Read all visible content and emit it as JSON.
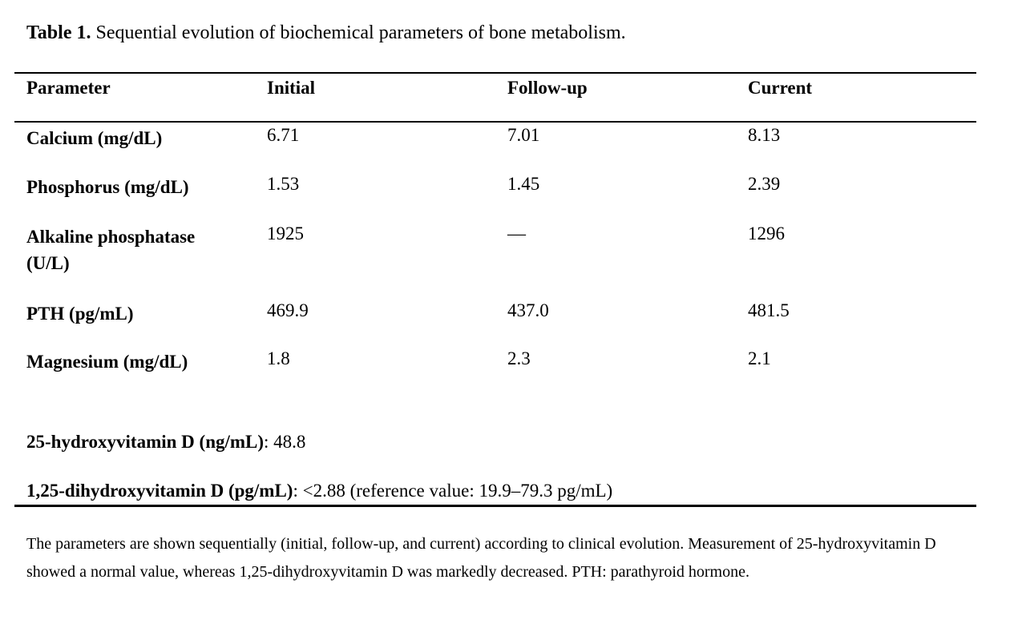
{
  "title": {
    "label": "Table 1.",
    "rest": " Sequential evolution of biochemical parameters of bone metabolism."
  },
  "table": {
    "columns": [
      "Parameter",
      "Initial",
      "Follow-up",
      "Current"
    ],
    "rows": [
      {
        "parameter": "Calcium (mg/dL)",
        "initial": "6.71",
        "followup": "7.01",
        "current": "8.13"
      },
      {
        "parameter": "Phosphorus (mg/dL)",
        "initial": "1.53",
        "followup": "1.45",
        "current": "2.39"
      },
      {
        "parameter": "Alkaline phosphatase (U/L)",
        "initial": "1925",
        "followup": "—",
        "current": "1296"
      },
      {
        "parameter": "PTH (pg/mL)",
        "initial": "469.9",
        "followup": "437.0",
        "current": "481.5"
      },
      {
        "parameter": "Magnesium (mg/dL)",
        "initial": "1.8",
        "followup": "2.3",
        "current": "2.1"
      }
    ]
  },
  "extra_values": [
    {
      "label": "25-hydroxyvitamin D (ng/mL)",
      "value": ": 48.8"
    },
    {
      "label": "1,25-dihydroxyvitamin D (pg/mL)",
      "value": ": <2.88 (reference value: 19.9–79.3 pg/mL)"
    }
  ],
  "footnote": {
    "text": "The parameters are shown sequentially (initial, follow-up, and current) according to clinical evolution. Measurement of 25-hydroxyvitamin D showed a normal value, whereas 1,25-dihydroxyvitamin D was markedly decreased. PTH: parathyroid hormone."
  },
  "colors": {
    "text": "#000000",
    "background": "#ffffff",
    "rule": "#000000"
  }
}
